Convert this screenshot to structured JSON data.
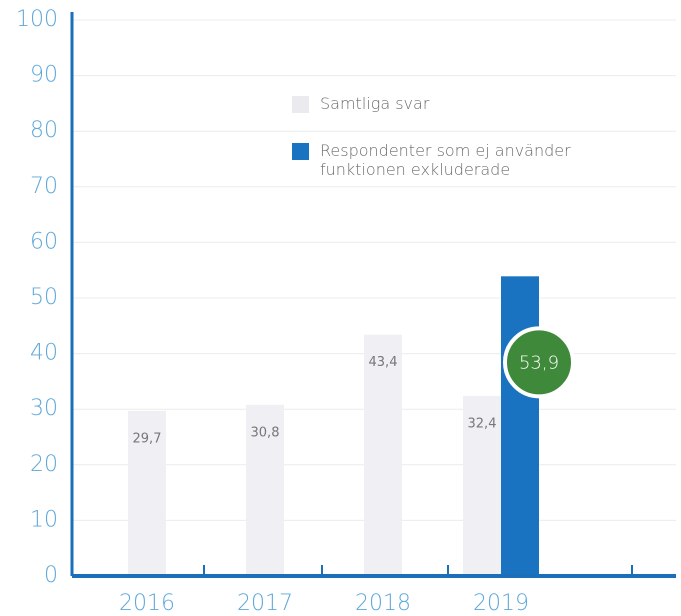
{
  "chart_data": {
    "type": "bar",
    "categories": [
      "2016",
      "2017",
      "2018",
      "2019"
    ],
    "series": [
      {
        "name": "Samtliga svar",
        "color": "#f0f0f4",
        "values": [
          29.7,
          30.8,
          43.4,
          32.4
        ],
        "value_labels": [
          "29,7",
          "30,8",
          "43,4",
          "32,4"
        ]
      },
      {
        "name": "Respondenter som ej använder funktionen exkluderade",
        "color": "#1a73c0",
        "values": [
          null,
          null,
          null,
          53.9
        ],
        "value_labels": [
          null,
          null,
          null,
          "53,9"
        ],
        "label_color": "#3f8a3a"
      }
    ],
    "ylim": [
      0,
      100
    ],
    "yticks": [
      0,
      10,
      20,
      30,
      40,
      50,
      60,
      70,
      80,
      90,
      100
    ],
    "grid": true
  }
}
